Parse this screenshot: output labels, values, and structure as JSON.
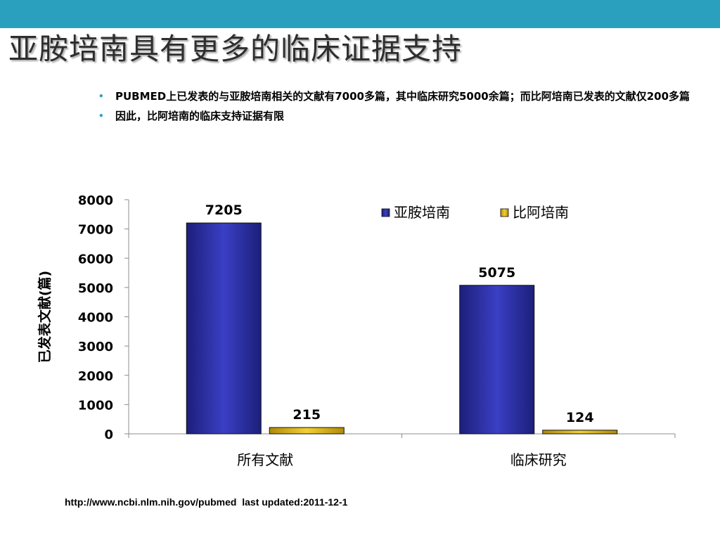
{
  "slide": {
    "title": "亚胺培南具有更多的临床证据支持",
    "bullets": [
      "PUBMED上已发表的与亚胺培南相关的文献有7000多篇，其中临床研究5000余篇；而比阿培南已发表的文献仅200多篇",
      "因此，比阿培南的临床支持证据有限"
    ],
    "source": "http://www.ncbi.nlm.nih.gov/pubmed  last updated:2011-12-1"
  },
  "chart_data": {
    "type": "bar",
    "title": "",
    "xlabel": "",
    "ylabel": "已发表文献(篇)",
    "categories": [
      "所有文献",
      "临床研究"
    ],
    "series": [
      {
        "name": "亚胺培南",
        "values": [
          7205,
          5075
        ],
        "color": "#2b2f9e"
      },
      {
        "name": "比阿培南",
        "values": [
          215,
          124
        ],
        "color": "#e3b81a"
      }
    ],
    "ylim": [
      0,
      8000
    ],
    "yticks": [
      0,
      1000,
      2000,
      3000,
      4000,
      5000,
      6000,
      7000,
      8000
    ],
    "data_labels": true,
    "grid": false,
    "legend_position": "top-right"
  }
}
